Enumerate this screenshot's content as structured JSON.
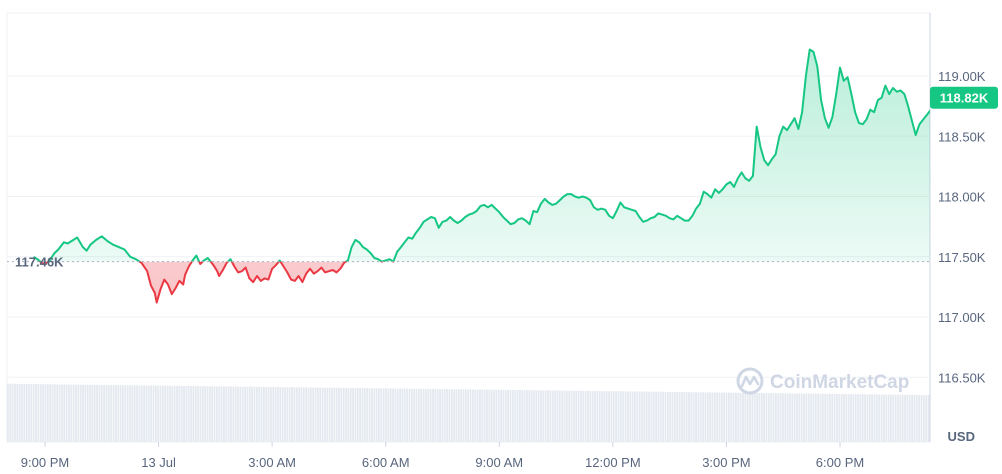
{
  "chart_data": {
    "type": "area",
    "ylim": [
      116250,
      119500
    ],
    "y_ticks": [
      {
        "value": 119000,
        "label": "119.00K"
      },
      {
        "value": 118500,
        "label": "118.50K"
      },
      {
        "value": 118000,
        "label": "118.00K"
      },
      {
        "value": 117500,
        "label": "117.50K"
      },
      {
        "value": 117000,
        "label": "117.00K"
      },
      {
        "value": 116500,
        "label": "116.50K"
      }
    ],
    "x_ticks": [
      {
        "hour": 0,
        "label": "9:00 PM"
      },
      {
        "hour": 3,
        "label": "13 Jul"
      },
      {
        "hour": 6,
        "label": "3:00 AM"
      },
      {
        "hour": 9,
        "label": "6:00 AM"
      },
      {
        "hour": 12,
        "label": "9:00 AM"
      },
      {
        "hour": 15,
        "label": "12:00 PM"
      },
      {
        "hour": 18,
        "label": "3:00 PM"
      },
      {
        "hour": 21,
        "label": "6:00 PM"
      }
    ],
    "x_domain_hours": [
      -0.3,
      24.1
    ],
    "open_value": 117460,
    "open_label": "117.46K",
    "last_value": 118820,
    "last_label": "118.82K",
    "currency": "USD",
    "up_color": "#16c784",
    "down_color": "#ea3943",
    "price_series": {
      "name": "Price",
      "points": [
        [
          -0.3,
          117500
        ],
        [
          -0.2,
          117480
        ],
        [
          -0.05,
          117440
        ],
        [
          0.1,
          117460
        ],
        [
          0.25,
          117530
        ],
        [
          0.35,
          117560
        ],
        [
          0.5,
          117620
        ],
        [
          0.6,
          117610
        ],
        [
          0.75,
          117640
        ],
        [
          0.85,
          117660
        ],
        [
          1.0,
          117580
        ],
        [
          1.1,
          117550
        ],
        [
          1.2,
          117600
        ],
        [
          1.35,
          117640
        ],
        [
          1.5,
          117670
        ],
        [
          1.65,
          117630
        ],
        [
          1.8,
          117600
        ],
        [
          1.95,
          117580
        ],
        [
          2.1,
          117560
        ],
        [
          2.25,
          117500
        ],
        [
          2.4,
          117480
        ],
        [
          2.55,
          117450
        ],
        [
          2.7,
          117380
        ],
        [
          2.8,
          117260
        ],
        [
          2.9,
          117200
        ],
        [
          2.95,
          117120
        ],
        [
          3.05,
          117230
        ],
        [
          3.15,
          117310
        ],
        [
          3.25,
          117270
        ],
        [
          3.35,
          117190
        ],
        [
          3.45,
          117240
        ],
        [
          3.55,
          117300
        ],
        [
          3.65,
          117270
        ],
        [
          3.7,
          117350
        ],
        [
          3.8,
          117420
        ],
        [
          3.9,
          117470
        ],
        [
          4.0,
          117510
        ],
        [
          4.1,
          117440
        ],
        [
          4.2,
          117470
        ],
        [
          4.3,
          117490
        ],
        [
          4.45,
          117430
        ],
        [
          4.55,
          117380
        ],
        [
          4.6,
          117340
        ],
        [
          4.7,
          117390
        ],
        [
          4.8,
          117450
        ],
        [
          4.9,
          117480
        ],
        [
          5.0,
          117420
        ],
        [
          5.1,
          117370
        ],
        [
          5.2,
          117380
        ],
        [
          5.3,
          117410
        ],
        [
          5.4,
          117320
        ],
        [
          5.5,
          117290
        ],
        [
          5.6,
          117340
        ],
        [
          5.7,
          117300
        ],
        [
          5.8,
          117320
        ],
        [
          5.9,
          117310
        ],
        [
          6.0,
          117400
        ],
        [
          6.1,
          117430
        ],
        [
          6.2,
          117470
        ],
        [
          6.3,
          117420
        ],
        [
          6.4,
          117370
        ],
        [
          6.5,
          117310
        ],
        [
          6.6,
          117300
        ],
        [
          6.7,
          117340
        ],
        [
          6.8,
          117290
        ],
        [
          6.9,
          117360
        ],
        [
          7.0,
          117400
        ],
        [
          7.1,
          117360
        ],
        [
          7.2,
          117380
        ],
        [
          7.3,
          117410
        ],
        [
          7.4,
          117370
        ],
        [
          7.5,
          117380
        ],
        [
          7.6,
          117390
        ],
        [
          7.7,
          117370
        ],
        [
          7.8,
          117400
        ],
        [
          7.9,
          117450
        ],
        [
          8.0,
          117470
        ],
        [
          8.1,
          117580
        ],
        [
          8.2,
          117640
        ],
        [
          8.3,
          117620
        ],
        [
          8.4,
          117580
        ],
        [
          8.5,
          117560
        ],
        [
          8.6,
          117530
        ],
        [
          8.7,
          117490
        ],
        [
          8.8,
          117480
        ],
        [
          8.9,
          117460
        ],
        [
          9.0,
          117470
        ],
        [
          9.1,
          117480
        ],
        [
          9.2,
          117460
        ],
        [
          9.3,
          117540
        ],
        [
          9.4,
          117580
        ],
        [
          9.5,
          117620
        ],
        [
          9.6,
          117660
        ],
        [
          9.7,
          117650
        ],
        [
          9.8,
          117700
        ],
        [
          9.9,
          117740
        ],
        [
          10.0,
          117790
        ],
        [
          10.1,
          117810
        ],
        [
          10.2,
          117830
        ],
        [
          10.3,
          117820
        ],
        [
          10.4,
          117740
        ],
        [
          10.5,
          117790
        ],
        [
          10.6,
          117800
        ],
        [
          10.7,
          117830
        ],
        [
          10.8,
          117800
        ],
        [
          10.9,
          117780
        ],
        [
          11.0,
          117800
        ],
        [
          11.1,
          117830
        ],
        [
          11.2,
          117850
        ],
        [
          11.3,
          117860
        ],
        [
          11.4,
          117880
        ],
        [
          11.5,
          117920
        ],
        [
          11.6,
          117930
        ],
        [
          11.7,
          117910
        ],
        [
          11.8,
          117930
        ],
        [
          11.9,
          117900
        ],
        [
          12.0,
          117870
        ],
        [
          12.1,
          117830
        ],
        [
          12.2,
          117800
        ],
        [
          12.3,
          117770
        ],
        [
          12.4,
          117780
        ],
        [
          12.5,
          117810
        ],
        [
          12.6,
          117820
        ],
        [
          12.7,
          117800
        ],
        [
          12.8,
          117770
        ],
        [
          12.9,
          117880
        ],
        [
          13.0,
          117870
        ],
        [
          13.1,
          117940
        ],
        [
          13.2,
          117980
        ],
        [
          13.3,
          117950
        ],
        [
          13.4,
          117930
        ],
        [
          13.5,
          117940
        ],
        [
          13.6,
          117970
        ],
        [
          13.7,
          118000
        ],
        [
          13.8,
          118020
        ],
        [
          13.9,
          118020
        ],
        [
          14.0,
          118000
        ],
        [
          14.1,
          117990
        ],
        [
          14.2,
          118000
        ],
        [
          14.3,
          117990
        ],
        [
          14.4,
          117970
        ],
        [
          14.5,
          117910
        ],
        [
          14.6,
          117890
        ],
        [
          14.7,
          117900
        ],
        [
          14.8,
          117890
        ],
        [
          14.9,
          117840
        ],
        [
          15.0,
          117820
        ],
        [
          15.1,
          117880
        ],
        [
          15.2,
          117950
        ],
        [
          15.3,
          117910
        ],
        [
          15.4,
          117900
        ],
        [
          15.5,
          117890
        ],
        [
          15.6,
          117880
        ],
        [
          15.7,
          117830
        ],
        [
          15.8,
          117790
        ],
        [
          15.9,
          117800
        ],
        [
          16.0,
          117820
        ],
        [
          16.1,
          117830
        ],
        [
          16.2,
          117860
        ],
        [
          16.3,
          117850
        ],
        [
          16.4,
          117840
        ],
        [
          16.5,
          117820
        ],
        [
          16.6,
          117810
        ],
        [
          16.7,
          117840
        ],
        [
          16.8,
          117820
        ],
        [
          16.9,
          117800
        ],
        [
          17.0,
          117800
        ],
        [
          17.1,
          117840
        ],
        [
          17.2,
          117900
        ],
        [
          17.3,
          117940
        ],
        [
          17.4,
          118040
        ],
        [
          17.5,
          118020
        ],
        [
          17.6,
          117990
        ],
        [
          17.7,
          118060
        ],
        [
          17.8,
          118030
        ],
        [
          17.9,
          118060
        ],
        [
          18.0,
          118100
        ],
        [
          18.1,
          118120
        ],
        [
          18.2,
          118080
        ],
        [
          18.3,
          118150
        ],
        [
          18.4,
          118200
        ],
        [
          18.5,
          118150
        ],
        [
          18.6,
          118130
        ],
        [
          18.7,
          118170
        ],
        [
          18.8,
          118580
        ],
        [
          18.9,
          118410
        ],
        [
          19.0,
          118300
        ],
        [
          19.1,
          118260
        ],
        [
          19.2,
          118310
        ],
        [
          19.3,
          118350
        ],
        [
          19.4,
          118500
        ],
        [
          19.5,
          118580
        ],
        [
          19.6,
          118550
        ],
        [
          19.7,
          118600
        ],
        [
          19.8,
          118650
        ],
        [
          19.9,
          118560
        ],
        [
          20.0,
          118700
        ],
        [
          20.1,
          119000
        ],
        [
          20.2,
          119220
        ],
        [
          20.3,
          119200
        ],
        [
          20.4,
          119080
        ],
        [
          20.5,
          118800
        ],
        [
          20.6,
          118650
        ],
        [
          20.7,
          118570
        ],
        [
          20.8,
          118660
        ],
        [
          20.9,
          118850
        ],
        [
          21.0,
          119070
        ],
        [
          21.1,
          118960
        ],
        [
          21.2,
          118990
        ],
        [
          21.3,
          118850
        ],
        [
          21.4,
          118700
        ],
        [
          21.5,
          118610
        ],
        [
          21.6,
          118600
        ],
        [
          21.7,
          118640
        ],
        [
          21.8,
          118720
        ],
        [
          21.9,
          118700
        ],
        [
          22.0,
          118800
        ],
        [
          22.1,
          118820
        ],
        [
          22.2,
          118920
        ],
        [
          22.3,
          118850
        ],
        [
          22.4,
          118900
        ],
        [
          22.5,
          118870
        ],
        [
          22.6,
          118880
        ],
        [
          22.7,
          118850
        ],
        [
          22.8,
          118750
        ],
        [
          22.9,
          118630
        ],
        [
          23.0,
          118510
        ],
        [
          23.1,
          118600
        ],
        [
          23.2,
          118640
        ],
        [
          23.3,
          118680
        ],
        [
          23.4,
          118720
        ],
        [
          23.5,
          118780
        ],
        [
          23.6,
          118800
        ],
        [
          23.7,
          118790
        ],
        [
          23.8,
          118770
        ],
        [
          23.9,
          118790
        ],
        [
          24.0,
          118820
        ]
      ]
    },
    "volume_series": {
      "name": "Volume",
      "note_scale": "relative 0-1",
      "values": [
        0.79,
        0.78,
        0.79,
        0.78,
        0.77,
        0.78,
        0.77,
        0.77,
        0.78,
        0.76,
        0.77,
        0.76,
        0.76,
        0.77,
        0.76,
        0.76,
        0.75,
        0.76,
        0.75,
        0.76,
        0.75,
        0.74,
        0.75,
        0.74,
        0.75,
        0.74,
        0.74,
        0.73,
        0.74,
        0.73,
        0.74,
        0.73,
        0.73,
        0.72,
        0.73,
        0.72,
        0.73,
        0.72,
        0.72,
        0.71,
        0.72,
        0.71,
        0.72,
        0.71,
        0.71,
        0.7,
        0.71,
        0.7,
        0.71,
        0.7,
        0.7,
        0.7,
        0.69,
        0.7,
        0.69,
        0.7,
        0.69,
        0.69,
        0.68,
        0.69,
        0.68,
        0.69,
        0.68,
        0.68,
        0.67,
        0.68,
        0.67,
        0.68,
        0.67,
        0.67,
        0.66,
        0.67,
        0.66,
        0.67,
        0.66,
        0.66,
        0.65,
        0.66,
        0.65,
        0.66,
        0.65,
        0.65,
        0.64,
        0.65,
        0.64,
        0.65,
        0.64,
        0.64,
        0.63,
        0.64,
        0.63,
        0.64,
        0.63,
        0.63,
        0.62,
        0.63,
        0.62,
        0.63,
        0.62,
        0.62,
        0.61,
        0.62,
        0.61,
        0.62,
        0.61,
        0.61,
        0.6,
        0.61,
        0.6,
        0.61,
        0.6,
        0.6,
        0.59,
        0.6,
        0.59,
        0.6,
        0.59,
        0.59,
        0.58,
        0.59,
        0.58,
        0.59,
        0.58,
        0.58,
        0.57,
        0.58,
        0.57,
        0.58,
        0.57,
        0.57,
        0.56,
        0.57,
        0.56,
        0.57,
        0.56,
        0.56,
        0.55,
        0.56,
        0.55,
        0.56,
        0.55,
        0.55,
        0.54,
        0.55,
        0.54,
        0.55,
        0.54,
        0.54,
        0.53,
        0.54,
        0.53,
        0.54,
        0.53,
        0.53,
        0.52,
        0.53,
        0.52,
        0.53,
        0.52,
        0.52,
        0.51,
        0.52,
        0.51,
        0.52,
        0.51,
        0.51,
        0.5,
        0.51,
        0.5,
        0.51,
        0.5,
        0.5,
        0.49,
        0.5,
        0.49,
        0.5,
        0.49,
        0.49,
        0.48,
        0.49,
        0.48,
        0.49,
        0.48,
        0.48,
        0.47,
        0.48,
        0.47,
        0.48,
        0.47,
        0.47,
        0.46,
        0.47,
        0.46,
        0.47,
        0.46,
        0.46,
        0.45,
        0.46,
        0.45,
        0.46,
        0.45,
        0.45,
        0.44,
        0.45,
        0.44,
        0.45,
        0.44,
        0.44,
        0.43,
        0.44,
        0.43,
        0.44,
        0.43,
        0.43,
        0.42,
        0.43,
        0.42,
        0.43,
        0.42,
        0.42,
        0.41,
        0.42,
        0.41,
        0.42,
        0.41,
        0.41,
        0.4,
        0.41,
        0.4,
        0.41,
        0.4,
        0.4,
        0.39,
        0.4,
        0.39,
        0.4,
        0.39,
        0.39,
        0.38,
        0.39,
        0.38,
        0.39,
        0.38,
        0.38,
        0.37,
        0.38,
        0.37,
        0.38,
        0.37,
        0.37,
        0.36,
        0.37,
        0.36,
        0.37,
        0.36,
        0.36,
        0.35,
        0.36,
        0.35,
        0.36,
        0.35,
        0.35,
        0.34,
        0.35,
        0.34,
        0.35,
        0.34,
        0.34,
        0.33,
        0.34,
        0.33,
        0.34,
        0.33,
        0.33,
        0.32,
        0.33,
        0.32,
        0.33,
        0.32,
        0.32,
        0.31,
        0.32,
        0.31,
        0.32,
        0.31,
        0.31,
        0.3,
        0.31,
        0.3,
        0.31,
        0.3,
        0.3,
        0.29,
        0.3,
        0.29,
        0.3,
        0.29,
        0.29,
        0.28,
        0.29,
        0.28,
        0.29,
        0.28,
        0.28,
        0.27,
        0.28,
        0.27,
        0.28,
        0.27,
        0.27,
        0.26,
        0.27,
        0.26,
        0.27,
        0.26,
        0.26,
        0.25,
        0.26,
        0.25,
        0.26,
        0.25,
        0.25,
        0.24,
        0.25,
        0.24,
        0.25,
        0.24,
        0.24,
        0.23,
        0.24,
        0.23,
        0.24,
        0.23,
        0.23,
        0.22,
        0.23,
        0.22,
        0.23,
        0.22,
        0.22,
        0.21,
        0.22,
        0.21,
        0.22,
        0.21,
        0.21,
        0.2,
        0.21,
        0.2,
        0.21,
        0.2,
        0.2,
        0.19,
        0.2,
        0.19,
        0.2,
        0.19,
        0.19,
        0.18,
        0.19,
        0.18,
        0.19,
        0.18,
        0.18,
        0.17,
        0.18,
        0.17,
        0.18,
        0.17,
        0.17,
        0.16,
        0.17,
        0.16,
        0.17,
        0.16,
        0.16,
        0.15,
        0.16,
        0.15,
        0.16,
        0.15,
        0.15,
        0.14,
        0.15,
        0.14,
        0.15,
        0.14,
        0.14,
        0.13,
        0.14,
        0.13,
        0.14,
        0.13
      ]
    },
    "grid": true
  },
  "watermark": {
    "text": "CoinMarketCap",
    "icon": "coinmarketcap-logo-icon"
  }
}
